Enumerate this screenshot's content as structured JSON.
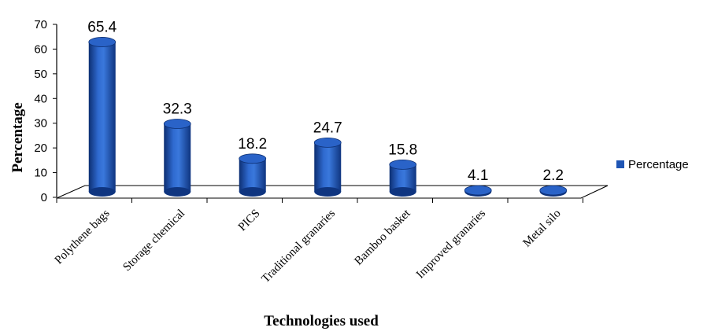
{
  "chart_data": {
    "type": "bar",
    "categories": [
      "Polythene bags",
      "Storage chemical",
      "PICS",
      "Traditional granaries",
      "Bamboo basket",
      "Improved granaries",
      "Metal silo"
    ],
    "series": [
      {
        "name": "Percentage",
        "values": [
          65.4,
          32.3,
          18.2,
          24.7,
          15.8,
          4.1,
          2.2
        ]
      }
    ],
    "data_labels": [
      "65.4",
      "32.3",
      "18.2",
      "24.7",
      "15.8",
      "4.1",
      "2.2"
    ],
    "xlabel": "Technologies used",
    "ylabel": "Percentage",
    "ylim": [
      0,
      70
    ],
    "yticks": [
      "0",
      "10",
      "20",
      "30",
      "40",
      "50",
      "60",
      "70"
    ],
    "grid": false,
    "legend": {
      "position": "right",
      "entries": [
        "Percentage"
      ]
    },
    "colors": {
      "bar": "#1f55b4",
      "bar_dark": "#0d2f72",
      "bar_light": "#5d8be0"
    }
  }
}
